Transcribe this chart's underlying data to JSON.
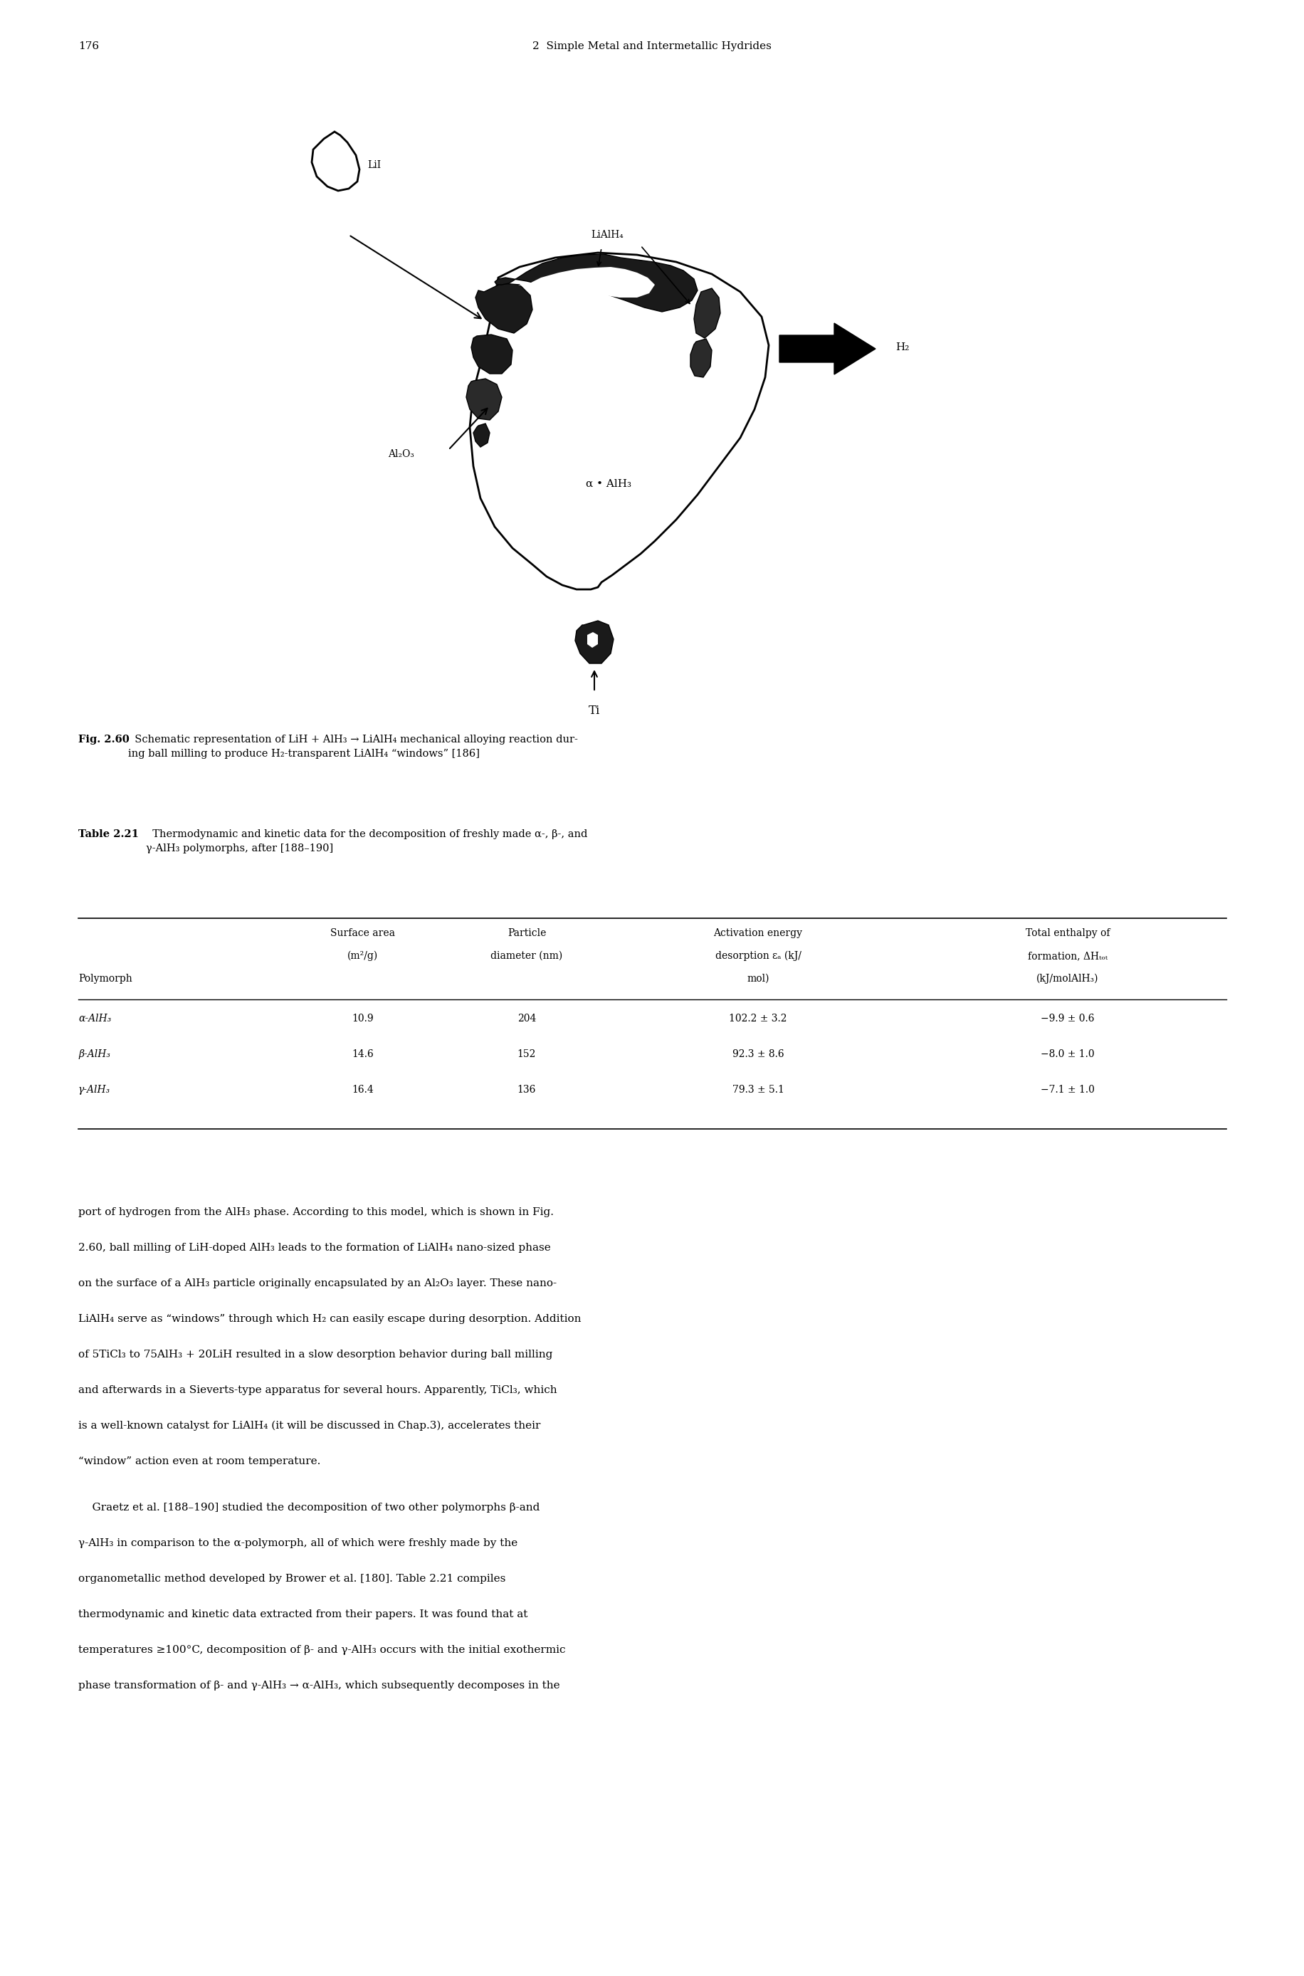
{
  "page_number": "176",
  "chapter_header": "2  Simple Metal and Intermetallic Hydrides",
  "fig_caption_bold": "Fig. 2.60",
  "fig_caption_normal": "  Schematic representation of LiH + AlH₃ → LiAlH₄ mechanical alloying reaction dur-\ning ball milling to produce H₂-transparent LiAlH₄ “windows” [186]",
  "table_title_bold": "Table 2.21",
  "table_title_normal": "  Thermodynamic and kinetic data for the decomposition of freshly made α-, β-, and\nγ-AlH₃ polymorphs, after [188–190]",
  "col_header_row1": [
    "",
    "Surface area",
    "Particle",
    "Activation energy",
    "Total enthalpy of"
  ],
  "col_header_row2": [
    "",
    "(m²/g)",
    "diameter (nm)",
    "desorption Eₐ (kJ/",
    "formation, ΔHₜₒₜ"
  ],
  "col_header_row3": [
    "Polymorph",
    "",
    "",
    "mol)",
    "(kJ/molAlH₃)"
  ],
  "rows": [
    [
      "α-AlH₃",
      "10.9",
      "204",
      "102.2 ± 3.2",
      "−9.9 ± 0.6"
    ],
    [
      "β-AlH₃",
      "14.6",
      "152",
      "92.3 ± 8.6",
      "−8.0 ± 1.0"
    ],
    [
      "γ-AlH₃",
      "16.4",
      "136",
      "79.3 ± 5.1",
      "−7.1 ± 1.0"
    ]
  ],
  "body_para1": "port of hydrogen from the AlH₃ phase. According to this model, which is shown in Fig. 2.60, ball milling of LiH-doped AlH₃ leads to the formation of LiAlH₄ nano-sized phase on the surface of a AlH₃ particle originally encapsulated by an Al₂O₃ layer. These nano- LiAlH₄ serve as “windows” through which H₂ can easily escape during desorption. Addition of 5TiCl₃ to 75AlH₃ + 20LiH resulted in a slow desorption behavior during ball milling and afterwards in a Sieverts-type apparatus for several hours. Apparently, TiCl₃, which is a well-known catalyst for LiAlH₄ (it will be discussed in Chap.3), accelerates their “window” action even at room temperature.",
  "body_para2": "    Graetz et al. [188–190] studied the decomposition of two other polymorphs β-and γ-AlH₃ in comparison to the α-polymorph, all of which were freshly made by the organometallic method developed by Brower et al. [180]. Table 2.21 compiles thermodynamic and kinetic data extracted from their papers. It was found that at temperatures ≥100°C, decomposition of β- and γ-AlH₃ occurs with the initial exothermic phase transformation of β- and γ-AlH₃ → α-AlH₃, which subsequently decomposes in the",
  "bg_color": "#ffffff",
  "text_color": "#000000"
}
